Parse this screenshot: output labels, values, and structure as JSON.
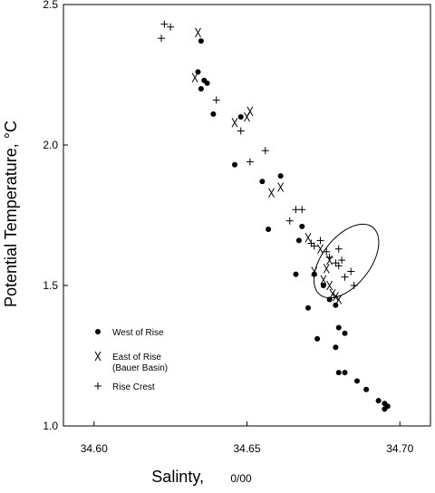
{
  "chart_data": {
    "type": "scatter",
    "xlabel": "Salinty, ",
    "xlabel_unit": "0/00",
    "ylabel": "Potential Temperature, °C",
    "xlim": [
      34.59,
      34.71
    ],
    "ylim": [
      1.0,
      2.5
    ],
    "xticks": [
      "34.60",
      "34.65",
      "34.70"
    ],
    "yticks": [
      "1.0",
      "1.5",
      "2.0",
      "2.5"
    ],
    "legend_position": "lower-left",
    "grid": false,
    "series": [
      {
        "name": "West of Rise",
        "marker": "dot",
        "points": [
          [
            34.634,
            2.26
          ],
          [
            34.635,
            2.37
          ],
          [
            34.636,
            2.23
          ],
          [
            34.635,
            2.2
          ],
          [
            34.637,
            2.22
          ],
          [
            34.639,
            2.11
          ],
          [
            34.648,
            2.1
          ],
          [
            34.646,
            1.93
          ],
          [
            34.655,
            1.87
          ],
          [
            34.661,
            1.89
          ],
          [
            34.657,
            1.7
          ],
          [
            34.667,
            1.66
          ],
          [
            34.668,
            1.71
          ],
          [
            34.666,
            1.54
          ],
          [
            34.672,
            1.54
          ],
          [
            34.675,
            1.5
          ],
          [
            34.677,
            1.45
          ],
          [
            34.679,
            1.43
          ],
          [
            34.67,
            1.42
          ],
          [
            34.673,
            1.31
          ],
          [
            34.68,
            1.35
          ],
          [
            34.679,
            1.28
          ],
          [
            34.682,
            1.33
          ],
          [
            34.68,
            1.19
          ],
          [
            34.682,
            1.19
          ],
          [
            34.686,
            1.16
          ],
          [
            34.689,
            1.13
          ],
          [
            34.693,
            1.09
          ],
          [
            34.695,
            1.08
          ],
          [
            34.696,
            1.07
          ],
          [
            34.695,
            1.06
          ]
        ]
      },
      {
        "name": "East of Rise\n(Bauer Basin)",
        "marker": "x",
        "points": [
          [
            34.633,
            2.24
          ],
          [
            34.634,
            2.4
          ],
          [
            34.646,
            2.08
          ],
          [
            34.651,
            2.12
          ],
          [
            34.65,
            2.1
          ],
          [
            34.658,
            1.83
          ],
          [
            34.661,
            1.85
          ],
          [
            34.67,
            1.67
          ],
          [
            34.672,
            1.55
          ],
          [
            34.674,
            1.63
          ],
          [
            34.677,
            1.59
          ],
          [
            34.675,
            1.52
          ],
          [
            34.676,
            1.56
          ],
          [
            34.677,
            1.5
          ],
          [
            34.678,
            1.47
          ],
          [
            34.679,
            1.46
          ],
          [
            34.68,
            1.45
          ]
        ]
      },
      {
        "name": "Rise Crest",
        "marker": "plus",
        "points": [
          [
            34.622,
            2.38
          ],
          [
            34.623,
            2.43
          ],
          [
            34.625,
            2.42
          ],
          [
            34.64,
            2.16
          ],
          [
            34.648,
            2.05
          ],
          [
            34.651,
            1.94
          ],
          [
            34.656,
            1.98
          ],
          [
            34.664,
            1.73
          ],
          [
            34.666,
            1.77
          ],
          [
            34.668,
            1.77
          ],
          [
            34.671,
            1.65
          ],
          [
            34.672,
            1.64
          ],
          [
            34.674,
            1.66
          ],
          [
            34.676,
            1.62
          ],
          [
            34.677,
            1.6
          ],
          [
            34.679,
            1.58
          ],
          [
            34.68,
            1.57
          ],
          [
            34.681,
            1.59
          ],
          [
            34.682,
            1.53
          ],
          [
            34.684,
            1.55
          ],
          [
            34.685,
            1.5
          ],
          [
            34.68,
            1.63
          ]
        ]
      }
    ],
    "annotation_ellipse": {
      "cx": 34.6825,
      "cy": 1.587,
      "rx_units": 0.014,
      "ry_units": 0.155,
      "rotation_deg": 0
    }
  }
}
